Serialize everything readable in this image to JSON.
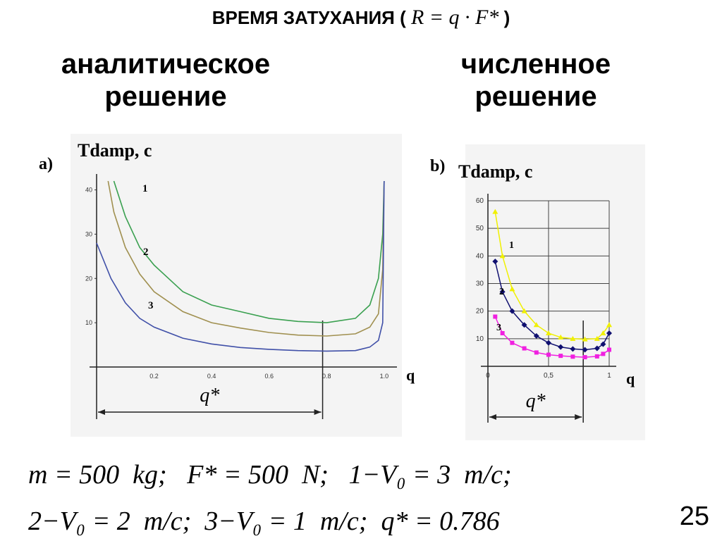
{
  "header": {
    "title_text": "ВРЕМЯ ЗАТУХАНИЯ (",
    "title_formula": "R = q · F*",
    "title_close": ")",
    "left_heading_1": "аналитическое",
    "left_heading_2": "решение",
    "right_heading_1": "численное",
    "right_heading_2": "решение"
  },
  "params": {
    "line1": "m = 500  kg;   F* = 500  N;   1−V₀ = 3  m/c;",
    "line2": "2−V₀ = 2  m/c;  3−V₀ = 1  m/c;  q* = 0.786"
  },
  "page_number": "25",
  "chart_data": [
    {
      "type": "line",
      "panel_label": "a)",
      "ylabel": "Tdamp, c",
      "xlabel": "q",
      "marker_label": "q*",
      "marker_x": 0.786,
      "xlim": [
        0,
        1.02
      ],
      "ylim": [
        0,
        42
      ],
      "x_ticks": [
        "0.2",
        "0.4",
        "0.6",
        "0.8",
        "1.0"
      ],
      "y_ticks": [
        "10",
        "20",
        "30",
        "40"
      ],
      "series": [
        {
          "name": "1",
          "color": "#3aa050",
          "x": [
            0.06,
            0.1,
            0.15,
            0.2,
            0.3,
            0.4,
            0.5,
            0.6,
            0.7,
            0.8,
            0.9,
            0.95,
            0.98,
            0.995,
            1.0
          ],
          "y": [
            42,
            34,
            27,
            23,
            17,
            14,
            12.5,
            11,
            10.3,
            10,
            11,
            14,
            20,
            30,
            42
          ]
        },
        {
          "name": "2",
          "color": "#a09050",
          "x": [
            0.04,
            0.06,
            0.1,
            0.15,
            0.2,
            0.3,
            0.4,
            0.5,
            0.6,
            0.7,
            0.8,
            0.9,
            0.95,
            0.98,
            0.995,
            1.0
          ],
          "y": [
            42,
            35,
            27,
            21,
            17,
            12.5,
            10,
            8.8,
            7.8,
            7.2,
            7,
            7.5,
            9,
            12,
            22,
            42
          ]
        },
        {
          "name": "3",
          "color": "#4050a8",
          "x": [
            0.0,
            0.05,
            0.1,
            0.15,
            0.2,
            0.3,
            0.4,
            0.5,
            0.6,
            0.7,
            0.8,
            0.9,
            0.95,
            0.98,
            0.995,
            1.0
          ],
          "y": [
            28,
            20,
            14.5,
            11,
            9,
            6.5,
            5.2,
            4.4,
            4,
            3.7,
            3.6,
            3.7,
            4.5,
            6,
            10,
            42
          ]
        }
      ]
    },
    {
      "type": "line",
      "panel_label": "b)",
      "ylabel": "Tdamp, c",
      "xlabel": "q",
      "marker_label": "q*",
      "marker_x": 0.786,
      "xlim": [
        0,
        1
      ],
      "ylim": [
        0,
        60
      ],
      "x_ticks": [
        "0",
        "0,5",
        "1"
      ],
      "y_ticks": [
        "10",
        "20",
        "30",
        "40",
        "50",
        "60"
      ],
      "grid": true,
      "series": [
        {
          "name": "1",
          "color": "#f0f000",
          "x": [
            0.06,
            0.12,
            0.2,
            0.3,
            0.4,
            0.5,
            0.6,
            0.7,
            0.8,
            0.9,
            0.95,
            1.0
          ],
          "y": [
            56,
            40,
            28,
            20,
            15,
            12,
            10.5,
            10,
            9.8,
            10,
            12,
            15
          ]
        },
        {
          "name": "2",
          "color": "#101070",
          "x": [
            0.06,
            0.12,
            0.2,
            0.3,
            0.4,
            0.5,
            0.6,
            0.7,
            0.8,
            0.9,
            0.95,
            1.0
          ],
          "y": [
            38,
            27,
            20,
            15,
            11,
            8.5,
            7,
            6.3,
            6,
            6.5,
            8,
            12
          ]
        },
        {
          "name": "3",
          "color": "#f020e0",
          "x": [
            0.06,
            0.12,
            0.2,
            0.3,
            0.4,
            0.5,
            0.6,
            0.7,
            0.8,
            0.9,
            0.95,
            1.0
          ],
          "y": [
            18,
            12,
            8.5,
            6.5,
            5,
            4.2,
            3.8,
            3.5,
            3.3,
            3.6,
            4.5,
            6
          ]
        }
      ]
    }
  ]
}
